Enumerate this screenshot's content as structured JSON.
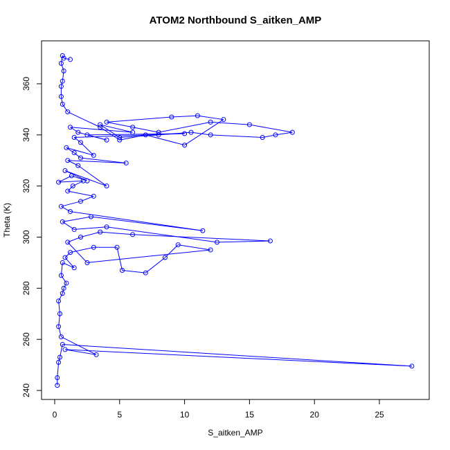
{
  "chart_data": {
    "type": "scatter",
    "title": "ATOM2 Northbound S_aitken_AMP",
    "xlabel": "S_aitken_AMP",
    "ylabel": "Theta (K)",
    "xlim": [
      0,
      28
    ],
    "ylim": [
      240,
      374
    ],
    "x_ticks": [
      "0",
      "5",
      "10",
      "15",
      "20",
      "25"
    ],
    "y_ticks": [
      "240",
      "260",
      "280",
      "300",
      "320",
      "340",
      "360"
    ],
    "grid": false,
    "legend": "none",
    "series": [
      {
        "style": "points-and-lines",
        "marker": "open-circle",
        "color": "#0000ff",
        "x": [
          0.2,
          0.2,
          0.3,
          0.4,
          0.6,
          27.5,
          0.8,
          3.2,
          0.5,
          0.3,
          0.4,
          0.3,
          0.6,
          0.7,
          0.9,
          0.5,
          0.6,
          1.5,
          0.8,
          1.2,
          3.0,
          4.8,
          5.2,
          7.0,
          8.5,
          9.5,
          12.0,
          2.5,
          1.0,
          2.0,
          3.5,
          6.0,
          16.6,
          12.5,
          4.0,
          1.5,
          0.6,
          2.8,
          11.4,
          1.2,
          0.5,
          2.0,
          3.0,
          1.0,
          1.4,
          2.2,
          0.3,
          1.3,
          2.5,
          0.8,
          4.0,
          1.8,
          1.0,
          5.5,
          2.0,
          1.5,
          0.9,
          3.0,
          2.0,
          1.5,
          10.0,
          2.5,
          4.0,
          1.8,
          1.2,
          6.0,
          3.5,
          5.0,
          8.0,
          10.5,
          12.0,
          16.0,
          17.0,
          18.3,
          15.0,
          12.0,
          8.0,
          6.0,
          4.0,
          9.0,
          11.0,
          13.0,
          10.0,
          7.0,
          5.0,
          3.5,
          1.0,
          0.6,
          0.5,
          0.5,
          0.6,
          0.7,
          0.5,
          0.6,
          0.7,
          1.2
        ],
        "y": [
          242,
          245,
          251,
          253,
          258,
          249.5,
          256,
          254,
          261,
          265,
          270,
          275,
          278,
          280,
          282,
          285,
          290,
          288,
          292,
          294,
          296,
          296,
          287,
          286,
          292,
          297,
          295,
          290,
          298,
          300,
          302,
          301,
          298.5,
          298,
          304,
          303,
          306,
          308,
          302.5,
          310,
          312,
          314,
          316,
          318,
          320,
          322,
          321.5,
          324,
          322,
          326,
          320,
          328,
          330,
          329,
          331,
          333,
          335,
          332,
          337,
          339,
          340.5,
          340,
          338,
          341,
          343,
          341,
          344,
          339,
          340,
          341,
          340,
          339,
          340,
          341,
          344,
          345,
          341,
          343,
          345,
          347,
          347.5,
          346,
          336,
          340,
          338,
          343,
          349,
          352,
          355,
          359,
          361,
          365,
          368,
          371,
          370,
          369.5
        ]
      }
    ]
  }
}
